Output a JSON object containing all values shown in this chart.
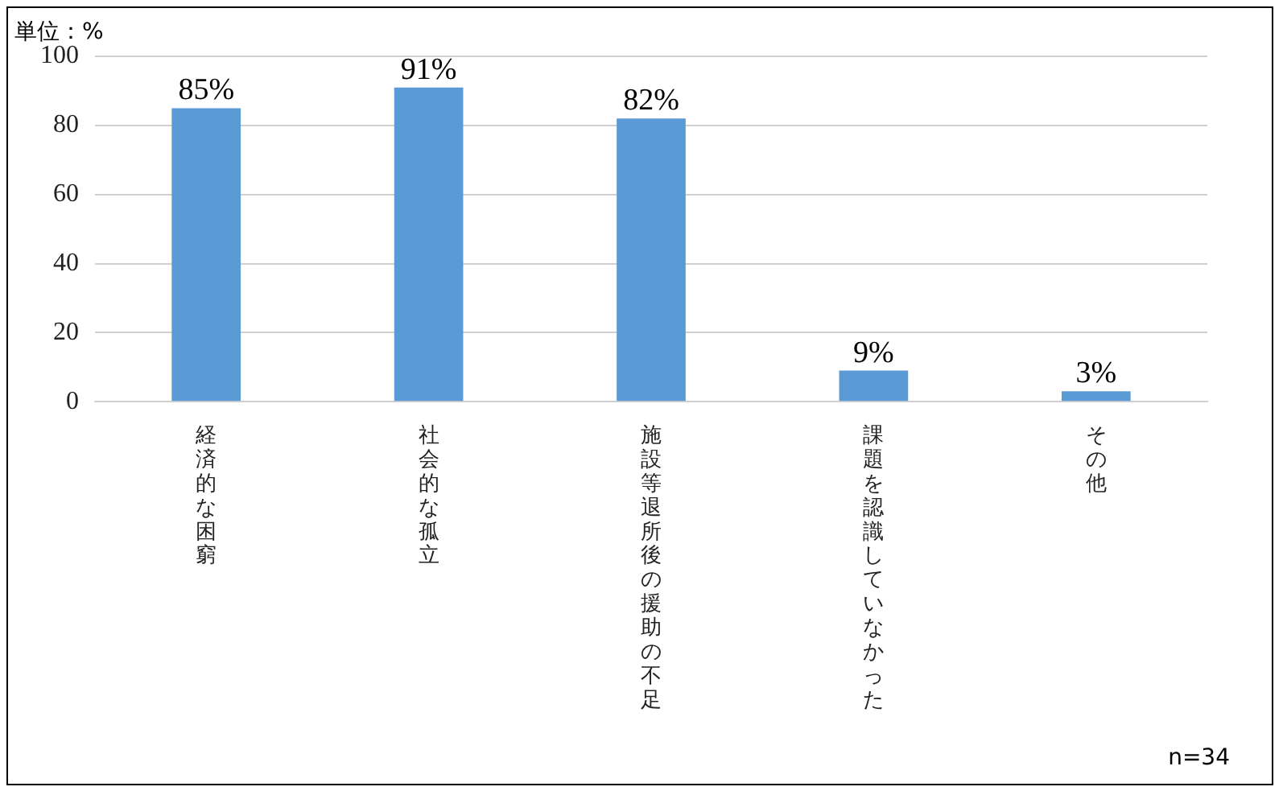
{
  "chart_data": {
    "type": "bar",
    "categories": [
      "経済的な困窮",
      "社会的な孤立",
      "施設等退所後の援助の不足",
      "課題を認識していなかった",
      "その他"
    ],
    "values": [
      85,
      91,
      82,
      9,
      3
    ],
    "value_labels": [
      "85%",
      "91%",
      "82%",
      "9%",
      "3%"
    ],
    "color": "#5b9bd5",
    "ylim": [
      0,
      100
    ],
    "yticks": [
      0,
      20,
      40,
      60,
      80,
      100
    ],
    "grid": "y",
    "legend": false,
    "annotations": [
      "単位：%",
      "n=34"
    ]
  }
}
